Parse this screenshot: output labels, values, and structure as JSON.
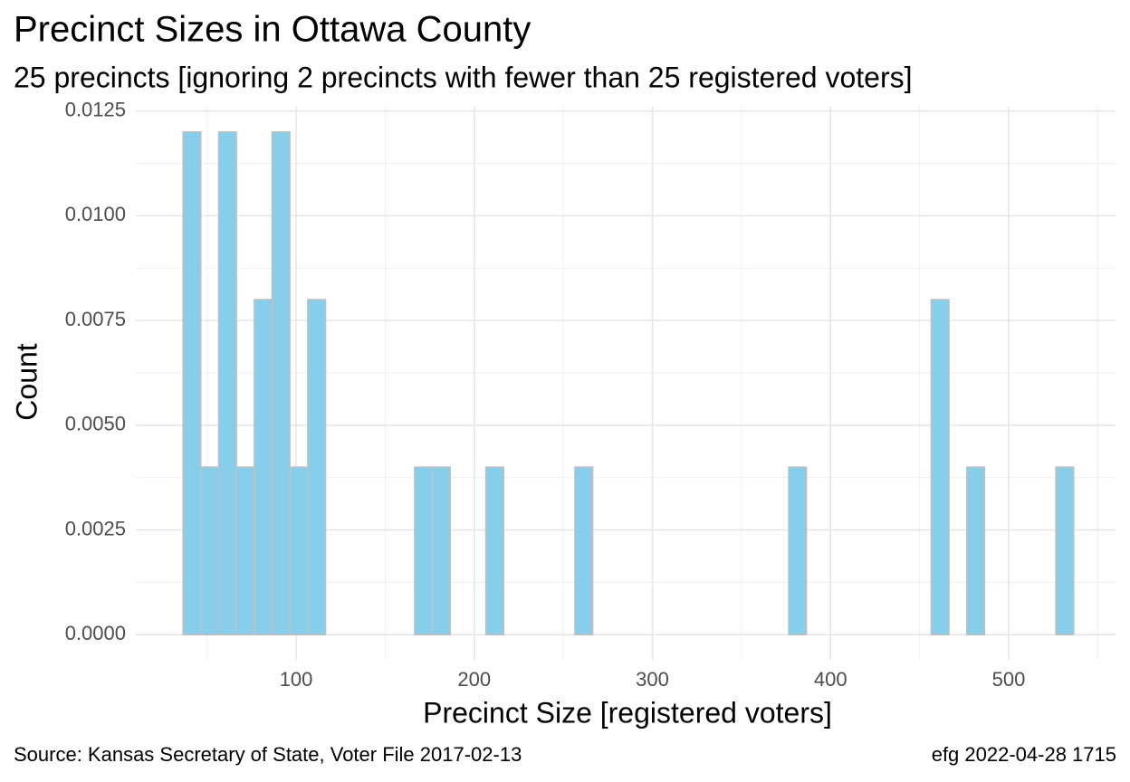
{
  "chart_data": {
    "type": "histogram",
    "title": "Precinct Sizes in Ottawa County",
    "subtitle": "25 precincts [ignoring 2 precincts with fewer than 25 registered voters]",
    "x_label": "Precinct Size [registered voters]",
    "y_label": "Count",
    "caption_left": "Source:  Kansas Secretary of State, Voter File  2017-02-13",
    "caption_right": "efg 2022-04-28 1715",
    "bins": [
      36.5,
      46.5,
      56.5,
      66.5,
      76.5,
      86.5,
      96.5,
      106.5,
      116.5,
      126.5,
      136.5,
      146.5,
      156.5,
      166.5,
      176.5,
      186.5,
      196.5,
      206.5,
      216.5,
      226.5,
      236.5,
      246.5,
      256.5,
      266.5,
      276.5,
      286.5,
      296.5,
      306.5,
      316.5,
      326.5,
      336.5,
      346.5,
      356.5,
      366.5,
      376.5,
      386.5,
      396.5,
      406.5,
      416.5,
      426.5,
      436.5,
      446.5,
      456.5,
      466.5,
      476.5,
      486.5,
      496.5,
      506.5,
      516.5,
      526.5,
      536.5
    ],
    "values": [
      0.012,
      0.004,
      0.012,
      0.004,
      0.008,
      0.012,
      0.004,
      0.008,
      0,
      0,
      0,
      0,
      0,
      0.004,
      0.004,
      0,
      0,
      0.004,
      0,
      0,
      0,
      0,
      0.004,
      0,
      0,
      0,
      0,
      0,
      0,
      0,
      0,
      0,
      0,
      0,
      0.004,
      0,
      0,
      0,
      0,
      0,
      0,
      0,
      0.008,
      0,
      0.004,
      0,
      0,
      0,
      0,
      0.004
    ],
    "color": "#87ceeb",
    "edge_color": "#c0c0c0",
    "xlim": [
      10,
      560
    ],
    "ylim": [
      -0.0006,
      0.0126
    ],
    "xticks": [
      100,
      200,
      300,
      400,
      500
    ],
    "x_minor_ticks": [
      50,
      150,
      250,
      350,
      450,
      550
    ],
    "yticks": [
      {
        "value": 0,
        "label": "0.0000"
      },
      {
        "value": 0.0025,
        "label": "0.0025"
      },
      {
        "value": 0.005,
        "label": "0.0050"
      },
      {
        "value": 0.0075,
        "label": "0.0075"
      },
      {
        "value": 0.01,
        "label": "0.0100"
      },
      {
        "value": 0.0125,
        "label": "0.0125"
      }
    ],
    "y_minor_ticks": [
      0.00125,
      0.00375,
      0.00625,
      0.00875,
      0.01125
    ],
    "grid": true
  }
}
